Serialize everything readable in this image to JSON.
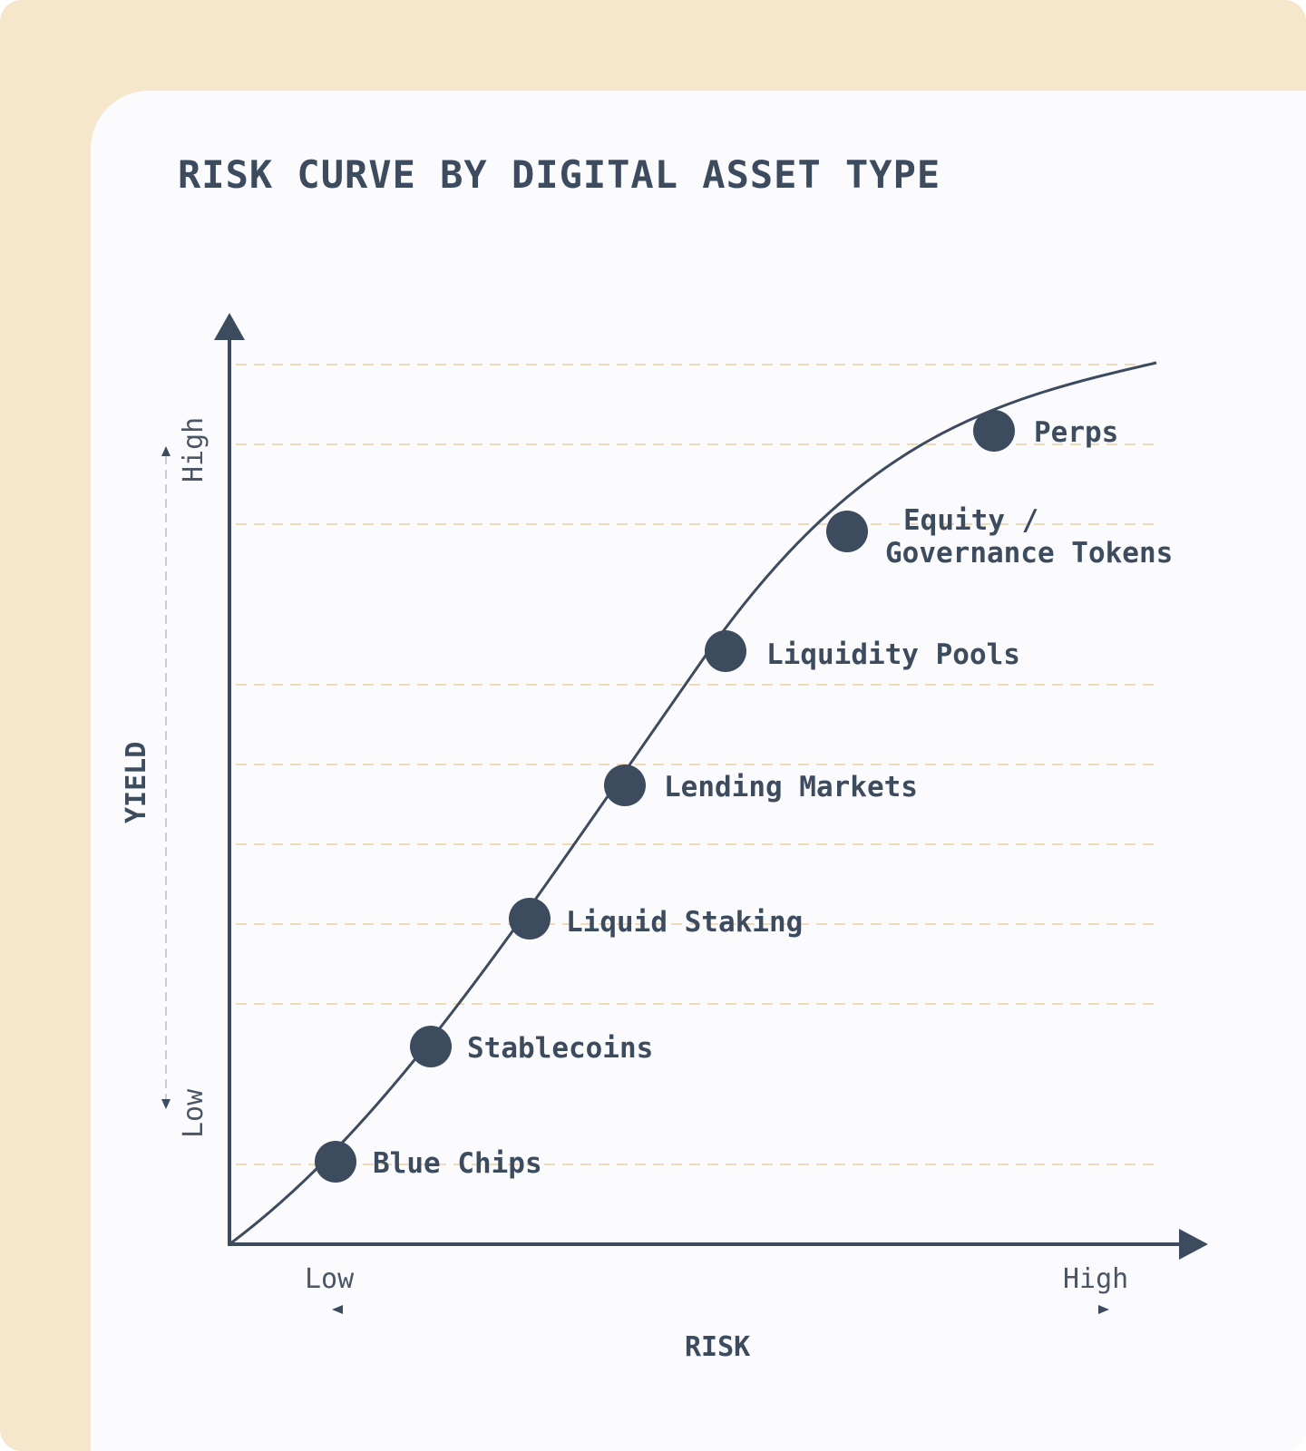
{
  "title": "RISK CURVE BY DIGITAL ASSET TYPE",
  "colors": {
    "frame": "#f5e6cc",
    "card": "#fbfbfd",
    "ink": "#3d4b5e",
    "grid": "#f0d9b8"
  },
  "axes": {
    "x_title": "RISK",
    "x_low": "Low",
    "x_high": "High",
    "y_title": "YIELD",
    "y_low": "Low",
    "y_high": "High"
  },
  "points": [
    {
      "label": [
        "Blue Chips"
      ]
    },
    {
      "label": [
        "Stablecoins"
      ]
    },
    {
      "label": [
        "Liquid Staking"
      ]
    },
    {
      "label": [
        "Lending Markets"
      ]
    },
    {
      "label": [
        "Liquidity Pools"
      ]
    },
    {
      "label": [
        "Equity /",
        "Governance Tokens"
      ]
    },
    {
      "label": [
        "Perps"
      ]
    }
  ]
}
